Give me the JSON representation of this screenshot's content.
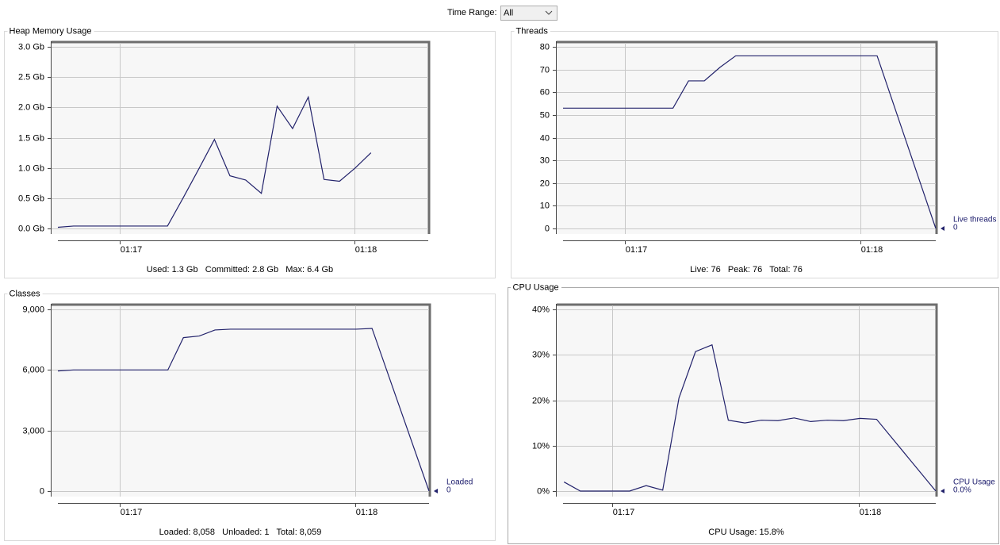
{
  "time_range_label": "Time Range:",
  "time_range_value": "All",
  "chart_data": [
    {
      "type": "line",
      "title": "Heap Memory Usage",
      "x": [
        16.737,
        16.804,
        16.87,
        16.937,
        17.004,
        17.07,
        17.137,
        17.204,
        17.27,
        17.337,
        17.404,
        17.47,
        17.537,
        17.604,
        17.671,
        17.737,
        17.804,
        17.871,
        17.937,
        18.004,
        18.071
      ],
      "series": [
        {
          "color": "#22226b",
          "values": [
            0.02,
            0.04,
            0.04,
            0.04,
            0.04,
            0.04,
            0.04,
            0.04,
            0.5,
            0.98,
            1.47,
            0.87,
            0.8,
            0.58,
            2.02,
            1.65,
            2.17,
            0.81,
            0.78,
            1.0,
            1.25
          ]
        }
      ],
      "xlim": [
        16.737,
        18.315
      ],
      "xticks": [
        {
          "value": 17,
          "label": "01:17"
        },
        {
          "value": 18,
          "label": "01:18"
        }
      ],
      "ylim": [
        0,
        3
      ],
      "yticks": [
        {
          "value": 0,
          "label": "0.0 Gb"
        },
        {
          "value": 0.5,
          "label": "0.5 Gb"
        },
        {
          "value": 1,
          "label": "1.0 Gb"
        },
        {
          "value": 1.5,
          "label": "1.5 Gb"
        },
        {
          "value": 2,
          "label": "2.0 Gb"
        },
        {
          "value": 2.5,
          "label": "2.5 Gb"
        },
        {
          "value": 3,
          "label": "3.0 Gb"
        }
      ],
      "grid": true,
      "summary": "Used: 1.3 Gb   Committed: 2.8 Gb   Max: 6.4 Gb"
    },
    {
      "type": "line",
      "title": "Threads",
      "x": [
        16.737,
        16.804,
        16.87,
        16.937,
        17.004,
        17.07,
        17.137,
        17.204,
        17.27,
        17.337,
        17.404,
        17.47,
        17.537,
        17.604,
        17.671,
        17.737,
        17.804,
        17.871,
        17.937,
        18.004,
        18.071,
        18.32
      ],
      "series": [
        {
          "name": "Live threads",
          "color": "#22226b",
          "values": [
            53,
            53,
            53,
            53,
            53,
            53,
            53,
            53,
            65,
            65,
            71,
            76,
            76,
            76,
            76,
            76,
            76,
            76,
            76,
            76,
            76,
            0
          ]
        }
      ],
      "legend_value": "0",
      "xlim": [
        16.737,
        18.32
      ],
      "xticks": [
        {
          "value": 17,
          "label": "01:17"
        },
        {
          "value": 18,
          "label": "01:18"
        }
      ],
      "ylim": [
        0,
        80
      ],
      "yticks": [
        0,
        10,
        20,
        30,
        40,
        50,
        60,
        70,
        80
      ],
      "grid": true,
      "summary": "Live: 76   Peak: 76   Total: 76"
    },
    {
      "type": "line",
      "title": "Classes",
      "x": [
        16.737,
        16.804,
        16.87,
        16.937,
        17.004,
        17.07,
        17.137,
        17.204,
        17.27,
        17.337,
        17.404,
        17.47,
        17.537,
        17.604,
        17.671,
        17.737,
        17.804,
        17.871,
        17.937,
        18.004,
        18.071,
        18.313
      ],
      "series": [
        {
          "name": "Loaded",
          "color": "#22226b",
          "values": [
            5950,
            6000,
            6000,
            6000,
            6000,
            6000,
            6000,
            6000,
            7600,
            7680,
            7980,
            8020,
            8020,
            8020,
            8020,
            8020,
            8020,
            8020,
            8020,
            8020,
            8058,
            0
          ]
        }
      ],
      "legend_value": "0",
      "xlim": [
        16.737,
        18.313
      ],
      "xticks": [
        {
          "value": 17,
          "label": "01:17"
        },
        {
          "value": 18,
          "label": "01:18"
        }
      ],
      "ylim": [
        0,
        9000
      ],
      "yticks": [
        0,
        {
          "value": 3000,
          "label": "3,000"
        },
        {
          "value": 6000,
          "label": "6,000"
        },
        {
          "value": 9000,
          "label": "9,000"
        }
      ],
      "grid": true,
      "summary": "Loaded: 8,058   Unloaded: 1   Total: 8,059"
    },
    {
      "type": "line",
      "title": "CPU Usage",
      "x": [
        16.804,
        16.87,
        16.937,
        17.004,
        17.07,
        17.137,
        17.204,
        17.27,
        17.337,
        17.404,
        17.47,
        17.537,
        17.604,
        17.671,
        17.737,
        17.804,
        17.871,
        17.937,
        18.004,
        18.071,
        18.311
      ],
      "series": [
        {
          "name": "CPU Usage",
          "color": "#22226b",
          "values": [
            2,
            0,
            0,
            0,
            0,
            1.2,
            0.2,
            20.5,
            30.7,
            32.2,
            15.6,
            15,
            15.6,
            15.5,
            16.1,
            15.3,
            15.6,
            15.5,
            16,
            15.8,
            0
          ]
        }
      ],
      "legend_value": "0.0%",
      "xlim": [
        16.8,
        18.311
      ],
      "xticks": [
        {
          "value": 17,
          "label": "01:17"
        },
        {
          "value": 18,
          "label": "01:18"
        }
      ],
      "ylim": [
        0,
        40
      ],
      "yticks": [
        {
          "value": 0,
          "label": "0%"
        },
        {
          "value": 10,
          "label": "10%"
        },
        {
          "value": 20,
          "label": "20%"
        },
        {
          "value": 30,
          "label": "30%"
        },
        {
          "value": 40,
          "label": "40%"
        }
      ],
      "grid": true,
      "summary": "CPU Usage: 15.8%"
    }
  ]
}
